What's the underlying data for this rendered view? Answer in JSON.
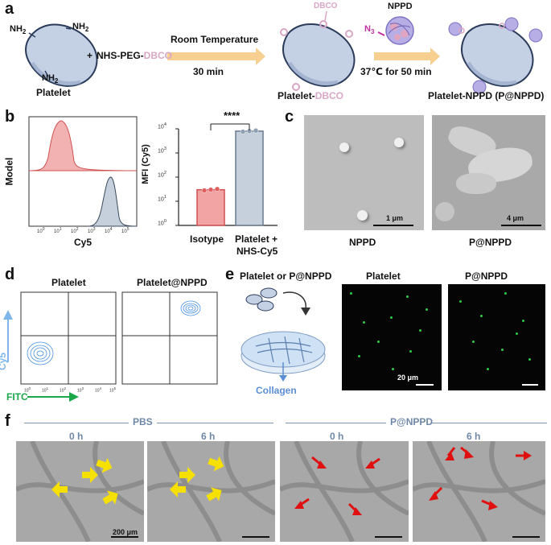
{
  "panel_a": {
    "label": "a",
    "nh2": "NH",
    "nh2_sub": "2",
    "platelet": "Platelet",
    "plus": "+",
    "reagent_prefix": "NHS-PEG-",
    "reagent_suffix": "DBCO",
    "step1_top": "Room Temperature",
    "step1_bottom": "30 min",
    "dbco_tag": "DBCO",
    "platelet_dbco_prefix": "Platelet-",
    "platelet_dbco_suffix": "DBCO",
    "nppd": "NPPD",
    "n3": "N",
    "n3_sub": "3",
    "step2": "37℃ for 50 min",
    "platelet_nppd": "Platelet-NPPD (P@NPPD)",
    "colors": {
      "platelet": "#c4d0e4",
      "outline": "#2a3b5a",
      "arrow": "#f5c77e",
      "dbco": "#d9a7c6",
      "nppd": "#9b8fd6"
    }
  },
  "panel_b": {
    "label": "b",
    "flow_ylabel": "Model",
    "flow_xlabel": "Cy5",
    "flow_ticks": [
      "10",
      "10",
      "10",
      "10",
      "10",
      "10"
    ],
    "flow_tick_exp": [
      "0",
      "1",
      "2",
      "3",
      "4",
      "5"
    ],
    "bar_ylabel": "MFI (Cy5)",
    "bar_yticks": [
      "10",
      "10",
      "10",
      "10",
      "10"
    ],
    "bar_ytick_exp": [
      "0",
      "1",
      "2",
      "3",
      "4"
    ],
    "significance": "****",
    "bar_cat1": "Isotype",
    "bar_cat2_line1": "Platelet +",
    "bar_cat2_line2": "NHS-Cy5"
  },
  "chart_data": {
    "type": "bar",
    "categories": [
      "Isotype",
      "Platelet + NHS-Cy5"
    ],
    "values": [
      30,
      8000
    ],
    "ylabel": "MFI (Cy5)",
    "yscale": "log",
    "ylim": [
      1,
      10000
    ],
    "points": [
      [
        28,
        30,
        32
      ],
      [
        7600,
        8000,
        8400
      ]
    ],
    "colors": [
      "#f2a3a3",
      "#c5d0dc"
    ]
  },
  "panel_c": {
    "label": "c",
    "scale1": "1 μm",
    "scale2": "4 μm",
    "caption1": "NPPD",
    "caption2": "P@NPPD"
  },
  "panel_d": {
    "label": "d",
    "title1": "Platelet",
    "title2": "Platelet@NPPD",
    "ylabel": "Cy5",
    "xlabel": "FITC",
    "ticks": [
      "10",
      "10",
      "10",
      "10",
      "10",
      "10"
    ],
    "tick_exp": [
      "0",
      "1",
      "2",
      "3",
      "4",
      "5"
    ]
  },
  "panel_e": {
    "label": "e",
    "header": "Platelet or P@NPPD",
    "collagen": "Collagen",
    "title1": "Platelet",
    "title2": "P@NPPD",
    "scale": "20 μm"
  },
  "panel_f": {
    "label": "f",
    "group1": "PBS",
    "group2": "P@NPPD",
    "time1": "0 h",
    "time2": "6 h",
    "time3": "0 h",
    "time4": "6 h",
    "scale": "200 μm"
  }
}
